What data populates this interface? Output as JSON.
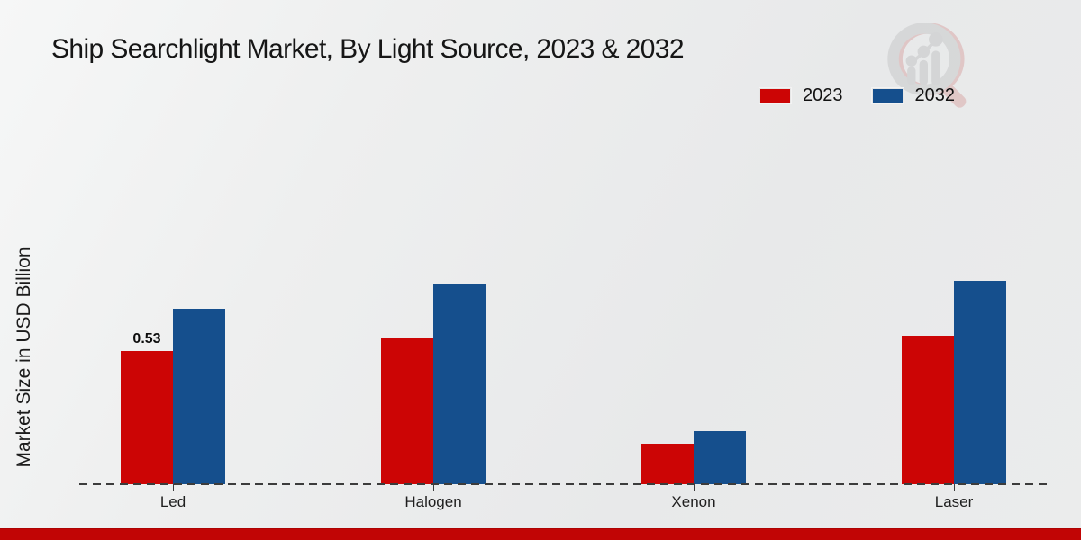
{
  "title": "Ship Searchlight Market, By Light Source, 2023 & 2032",
  "watermark_icon": "magnifier-bar-chart-logo",
  "chart_data": {
    "type": "bar",
    "title": "Ship Searchlight Market, By Light Source, 2023 & 2032",
    "ylabel": "Market Size in USD Billion",
    "xlabel": "",
    "categories": [
      "Led",
      "Halogen",
      "Xenon",
      "Laser"
    ],
    "series": [
      {
        "name": "2023",
        "color": "#cc0505",
        "values": [
          0.53,
          0.58,
          0.16,
          0.59
        ]
      },
      {
        "name": "2032",
        "color": "#154f8d",
        "values": [
          0.7,
          0.8,
          0.21,
          0.81
        ]
      }
    ],
    "bar_labels": [
      {
        "category": "Led",
        "series": "2023",
        "text": "0.53"
      }
    ],
    "ylim": [
      0,
      0.9
    ],
    "grid": false,
    "baseline_style": "dashed",
    "legend_position": "top-right",
    "accent_bottom_strip_color": "#c10505"
  }
}
